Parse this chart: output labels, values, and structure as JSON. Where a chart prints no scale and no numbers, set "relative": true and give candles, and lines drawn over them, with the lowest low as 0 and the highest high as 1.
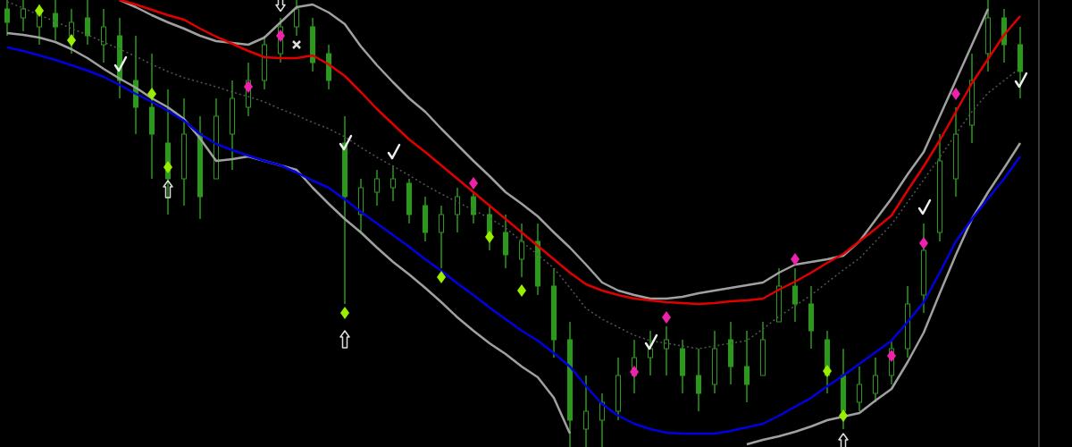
{
  "chart_data": {
    "type": "candlestick",
    "relative": true,
    "color": "#2a9a1a",
    "categories": [
      null,
      null,
      null,
      null,
      null,
      null,
      null,
      null,
      null,
      null,
      null,
      null,
      null,
      null,
      null,
      null,
      null,
      null,
      null,
      null,
      null,
      null,
      null,
      null,
      null,
      null,
      null,
      null,
      null,
      null,
      null,
      null,
      null,
      null,
      null,
      null,
      null,
      null,
      null,
      null,
      null,
      null,
      null,
      null,
      null,
      null,
      null,
      null,
      null,
      null,
      null,
      null,
      null,
      null,
      null,
      null,
      null,
      null,
      null,
      null,
      null,
      null,
      null,
      null
    ],
    "ohlc": [
      [
        0.98,
        1,
        0.92,
        0.95
      ],
      [
        0.96,
        1,
        0.93,
        0.98
      ],
      [
        0.94,
        0.99,
        0.9,
        0.97
      ],
      [
        0.97,
        1,
        0.91,
        0.94
      ],
      [
        0.92,
        0.98,
        0.88,
        0.95
      ],
      [
        0.96,
        1,
        0.9,
        0.92
      ],
      [
        0.9,
        0.98,
        0.86,
        0.94
      ],
      [
        0.92,
        0.96,
        0.78,
        0.82
      ],
      [
        0.82,
        0.92,
        0.7,
        0.76
      ],
      [
        0.76,
        0.88,
        0.6,
        0.7
      ],
      [
        0.68,
        0.8,
        0.52,
        0.6
      ],
      [
        0.6,
        0.78,
        0.54,
        0.7
      ],
      [
        0.7,
        0.74,
        0.51,
        0.56
      ],
      [
        0.6,
        0.78,
        0.6,
        0.74
      ],
      [
        0.7,
        0.82,
        0.62,
        0.78
      ],
      [
        0.76,
        0.86,
        0.74,
        0.82
      ],
      [
        0.82,
        0.92,
        0.8,
        0.9
      ],
      [
        0.88,
        0.96,
        0.86,
        0.94
      ],
      [
        0.94,
        1,
        0.92,
        0.98
      ],
      [
        0.94,
        0.96,
        0.84,
        0.86
      ],
      [
        0.88,
        0.9,
        0.8,
        0.82
      ],
      [
        0.68,
        0.74,
        0.32,
        0.56
      ],
      [
        0.52,
        0.6,
        0.48,
        0.58
      ],
      [
        0.57,
        0.62,
        0.54,
        0.6
      ],
      [
        0.58,
        0.63,
        0.55,
        0.6
      ],
      [
        0.59,
        0.6,
        0.5,
        0.52
      ],
      [
        0.54,
        0.56,
        0.46,
        0.48
      ],
      [
        0.48,
        0.54,
        0.4,
        0.52
      ],
      [
        0.52,
        0.58,
        0.48,
        0.56
      ],
      [
        0.56,
        0.57,
        0.5,
        0.52
      ],
      [
        0.52,
        0.54,
        0.44,
        0.47
      ],
      [
        0.48,
        0.52,
        0.4,
        0.43
      ],
      [
        0.42,
        0.5,
        0.38,
        0.46
      ],
      [
        0.46,
        0.5,
        0.34,
        0.36
      ],
      [
        0.36,
        0.4,
        0.2,
        0.24
      ],
      [
        0.24,
        0.28,
        0,
        0.06
      ],
      [
        0.04,
        0.16,
        0,
        0.08
      ],
      [
        0.06,
        0.12,
        0,
        0.1
      ],
      [
        0.08,
        0.2,
        0.06,
        0.16
      ],
      [
        0.16,
        0.24,
        0.12,
        0.2
      ],
      [
        0.2,
        0.26,
        0.16,
        0.22
      ],
      [
        0.22,
        0.27,
        0.16,
        0.24
      ],
      [
        0.22,
        0.24,
        0.12,
        0.16
      ],
      [
        0.16,
        0.22,
        0.08,
        0.12
      ],
      [
        0.14,
        0.26,
        0.12,
        0.22
      ],
      [
        0.24,
        0.28,
        0.14,
        0.18
      ],
      [
        0.18,
        0.26,
        0.1,
        0.14
      ],
      [
        0.16,
        0.28,
        0.16,
        0.24
      ],
      [
        0.28,
        0.4,
        0.28,
        0.36
      ],
      [
        0.36,
        0.4,
        0.28,
        0.32
      ],
      [
        0.32,
        0.36,
        0.22,
        0.26
      ],
      [
        0.24,
        0.26,
        0.12,
        0.16
      ],
      [
        0.16,
        0.22,
        0.04,
        0.08
      ],
      [
        0.1,
        0.18,
        0.08,
        0.14
      ],
      [
        0.12,
        0.2,
        0.1,
        0.16
      ],
      [
        0.16,
        0.24,
        0.14,
        0.22
      ],
      [
        0.22,
        0.36,
        0.2,
        0.32
      ],
      [
        0.34,
        0.5,
        0.3,
        0.44
      ],
      [
        0.48,
        0.7,
        0.46,
        0.64
      ],
      [
        0.6,
        0.76,
        0.56,
        0.7
      ],
      [
        0.72,
        0.88,
        0.68,
        0.82
      ],
      [
        0.88,
        1,
        0.84,
        0.96
      ],
      [
        0.96,
        0.98,
        0.86,
        0.9
      ],
      [
        0.9,
        0.94,
        0.78,
        0.84
      ]
    ],
    "series": [
      {
        "type": "line",
        "color": "#a0a0a0",
        "line_style": "solid",
        "values": [
          0.926,
          0.922,
          0.916,
          0.906,
          0.89,
          0.87,
          0.846,
          0.824,
          0.804,
          0.78,
          0.76,
          0.734,
          0.69,
          0.64,
          0.644,
          0.65,
          0.64,
          0.63,
          0.62,
          0.58,
          0.544,
          0.51,
          0.48,
          0.446,
          0.414,
          0.386,
          0.356,
          0.324,
          0.29,
          0.26,
          0.232,
          0.208,
          0.18,
          0.156,
          0.11,
          0.03,
          null,
          null,
          null,
          null,
          null,
          null,
          null,
          null,
          null,
          null,
          0.006,
          0.016,
          0.024,
          0.034,
          0.046,
          0.06,
          0.068,
          0.076,
          0.104,
          0.13,
          0.19,
          0.256,
          0.344,
          0.43,
          0.51,
          0.57,
          0.624,
          0.68
        ]
      },
      {
        "type": "line",
        "color": "#a0a0a0",
        "line_style": "solid",
        "values": [
          null,
          null,
          null,
          null,
          null,
          null,
          null,
          1.0,
          0.984,
          0.966,
          0.95,
          0.936,
          0.92,
          0.908,
          0.904,
          0.9,
          0.916,
          0.95,
          0.984,
          0.99,
          0.972,
          0.946,
          0.896,
          0.854,
          0.816,
          0.78,
          0.75,
          0.712,
          0.676,
          0.64,
          0.606,
          0.57,
          0.544,
          0.516,
          0.48,
          0.446,
          0.408,
          0.368,
          0.35,
          0.34,
          0.332,
          0.332,
          0.336,
          0.344,
          0.35,
          0.356,
          0.362,
          0.368,
          0.39,
          0.408,
          0.414,
          0.42,
          0.428,
          0.46,
          0.508,
          0.556,
          0.61,
          0.66,
          0.74,
          0.82,
          0.9,
          0.98,
          null,
          null
        ]
      },
      {
        "type": "line",
        "color": "#555555",
        "line_style": "dotted",
        "values": [
          0.996,
          0.982,
          0.966,
          0.952,
          0.936,
          0.922,
          0.906,
          0.89,
          0.874,
          0.856,
          0.84,
          0.826,
          0.816,
          0.806,
          0.794,
          0.784,
          0.772,
          0.756,
          0.742,
          0.726,
          0.712,
          0.694,
          0.67,
          0.648,
          0.628,
          0.608,
          0.586,
          0.566,
          0.548,
          0.53,
          0.512,
          0.49,
          0.46,
          0.43,
          0.4,
          0.356,
          0.31,
          0.286,
          0.268,
          0.25,
          0.238,
          0.232,
          0.226,
          0.22,
          0.226,
          0.232,
          0.238,
          0.264,
          0.292,
          0.316,
          0.34,
          0.368,
          0.396,
          0.422,
          0.46,
          0.498,
          0.548,
          0.598,
          0.648,
          0.7,
          0.75,
          0.792,
          0.82,
          0.848
        ]
      },
      {
        "type": "line",
        "color": "#0000e0",
        "line_style": "solid",
        "values": [
          0.894,
          0.886,
          0.876,
          0.866,
          0.854,
          0.842,
          0.828,
          0.81,
          0.79,
          0.772,
          0.752,
          0.73,
          0.7,
          0.678,
          0.664,
          0.652,
          0.64,
          0.63,
          0.614,
          0.596,
          0.58,
          0.554,
          0.526,
          0.5,
          0.474,
          0.448,
          0.42,
          0.394,
          0.366,
          0.34,
          0.312,
          0.286,
          0.26,
          0.238,
          0.21,
          0.18,
          0.136,
          0.096,
          0.07,
          0.052,
          0.04,
          0.032,
          0.03,
          0.03,
          0.03,
          0.036,
          0.044,
          0.052,
          0.07,
          0.09,
          0.11,
          0.136,
          0.16,
          0.186,
          0.212,
          0.238,
          0.28,
          0.324,
          0.39,
          0.46,
          0.51,
          0.556,
          0.6,
          0.65
        ]
      },
      {
        "type": "line",
        "color": "#e00000",
        "line_style": "solid",
        "values": [
          null,
          null,
          null,
          null,
          null,
          null,
          null,
          1.0,
          0.99,
          0.978,
          0.966,
          0.956,
          0.936,
          0.918,
          0.902,
          0.886,
          0.872,
          0.87,
          0.87,
          0.876,
          0.856,
          0.83,
          0.794,
          0.756,
          0.722,
          0.688,
          0.66,
          0.63,
          0.6,
          0.57,
          0.54,
          0.51,
          0.48,
          0.45,
          0.42,
          0.39,
          0.364,
          0.35,
          0.34,
          0.332,
          0.328,
          0.324,
          0.322,
          0.32,
          0.322,
          0.326,
          0.328,
          0.332,
          0.352,
          0.37,
          0.39,
          0.412,
          0.432,
          0.46,
          0.488,
          0.518,
          0.574,
          0.628,
          0.686,
          0.75,
          0.814,
          0.868,
          0.922,
          0.964
        ]
      },
      {
        "type": "scatter",
        "marker": "diamond",
        "color": "#99ee00",
        "values": [
          null,
          null,
          0.976,
          null,
          0.91,
          null,
          null,
          null,
          null,
          0.79,
          0.626,
          null,
          null,
          null,
          null,
          null,
          null,
          null,
          null,
          null,
          null,
          0.3,
          null,
          null,
          null,
          null,
          null,
          0.38,
          null,
          null,
          0.47,
          null,
          0.35,
          null,
          null,
          null,
          null,
          null,
          null,
          null,
          null,
          null,
          null,
          null,
          null,
          null,
          null,
          null,
          null,
          null,
          null,
          0.17,
          0.07,
          null,
          null,
          null,
          null,
          null,
          null,
          null,
          null,
          null,
          null,
          null
        ]
      },
      {
        "type": "scatter",
        "marker": "diamond",
        "color": "#ee22aa",
        "values": [
          null,
          null,
          null,
          null,
          null,
          null,
          null,
          null,
          null,
          null,
          null,
          null,
          null,
          null,
          null,
          0.806,
          null,
          0.92,
          null,
          null,
          null,
          null,
          null,
          null,
          null,
          null,
          null,
          null,
          null,
          0.59,
          null,
          null,
          null,
          null,
          null,
          null,
          null,
          null,
          null,
          0.168,
          null,
          0.29,
          null,
          null,
          null,
          null,
          null,
          null,
          null,
          0.42,
          null,
          null,
          null,
          null,
          null,
          0.204,
          null,
          0.456,
          null,
          0.79,
          null,
          null,
          null,
          null
        ]
      },
      {
        "type": "scatter",
        "marker": "triangle",
        "color": "#dddddd",
        "values": [
          null,
          null,
          null,
          null,
          null,
          null,
          null,
          null,
          null,
          null,
          0.576,
          null,
          null,
          null,
          null,
          null,
          null,
          null,
          null,
          null,
          null,
          0.24,
          null,
          null,
          null,
          null,
          null,
          null,
          null,
          null,
          null,
          null,
          null,
          null,
          null,
          null,
          null,
          null,
          null,
          null,
          null,
          null,
          null,
          null,
          null,
          null,
          null,
          null,
          null,
          null,
          null,
          null,
          0.01,
          null,
          null,
          null,
          null,
          null,
          null,
          null,
          null,
          null,
          null,
          null
        ]
      },
      {
        "type": "scatter",
        "marker": "triangle-down",
        "color": "#dddddd",
        "values": [
          null,
          null,
          null,
          null,
          null,
          null,
          null,
          null,
          null,
          null,
          null,
          null,
          null,
          null,
          null,
          null,
          null,
          0.995,
          null,
          null,
          null,
          null,
          null,
          null,
          null,
          null,
          null,
          null,
          null,
          null,
          null,
          null,
          null,
          null,
          null,
          null,
          null,
          null,
          null,
          null,
          null,
          null,
          null,
          null,
          null,
          null,
          null,
          null,
          null,
          null,
          null,
          null,
          null,
          null,
          null,
          null,
          null,
          null,
          null,
          null,
          null,
          null,
          null,
          null
        ]
      },
      {
        "type": "scatter",
        "marker": "cross",
        "color": "#dddddd",
        "values": [
          null,
          null,
          null,
          null,
          null,
          null,
          null,
          null,
          null,
          null,
          null,
          null,
          null,
          null,
          null,
          null,
          null,
          null,
          0.9,
          null,
          null,
          null,
          null,
          null,
          null,
          null,
          null,
          null,
          null,
          null,
          null,
          null,
          null,
          null,
          null,
          null,
          null,
          null,
          null,
          null,
          null,
          null,
          null,
          null,
          null,
          null,
          null,
          null,
          null,
          null,
          null,
          null,
          null,
          null,
          null,
          null,
          null,
          null,
          null,
          null,
          null,
          null,
          null,
          null
        ]
      },
      {
        "type": "scatter",
        "color": "#eeeeee",
        "values": [
          null,
          null,
          null,
          null,
          null,
          null,
          null,
          0.856,
          null,
          null,
          null,
          null,
          null,
          null,
          null,
          null,
          null,
          null,
          null,
          null,
          null,
          0.68,
          null,
          null,
          0.66,
          null,
          null,
          null,
          null,
          null,
          null,
          null,
          null,
          null,
          null,
          null,
          null,
          null,
          null,
          null,
          0.234,
          null,
          null,
          null,
          null,
          null,
          null,
          null,
          null,
          null,
          null,
          null,
          null,
          null,
          null,
          null,
          null,
          0.536,
          null,
          null,
          null,
          null,
          null,
          0.82
        ]
      }
    ]
  }
}
